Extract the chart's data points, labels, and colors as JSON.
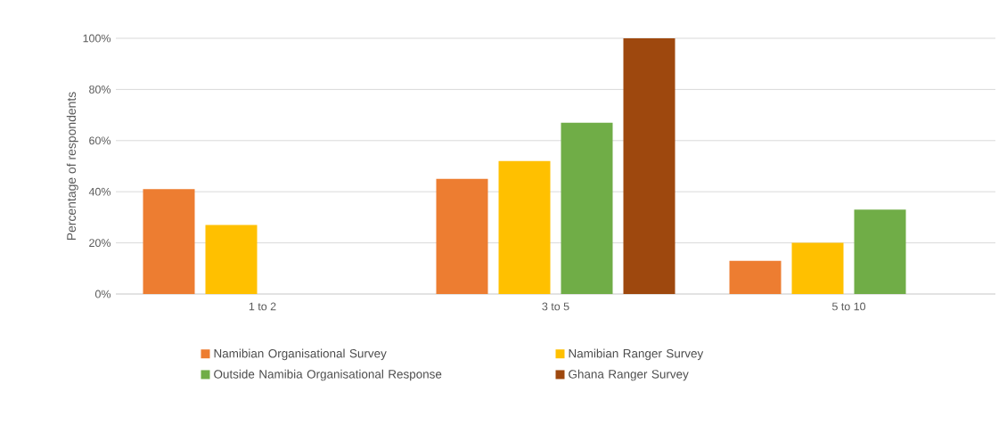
{
  "chart_data": {
    "type": "bar",
    "ylabel": "Percentage of respondents",
    "categories": [
      "1 to 2",
      "3 to 5",
      "5 to 10"
    ],
    "series": [
      {
        "name": "Namibian Organisational Survey",
        "color": "#ed7d31",
        "values": [
          41,
          45,
          13
        ]
      },
      {
        "name": "Namibian Ranger Survey",
        "color": "#ffc000",
        "values": [
          27,
          52,
          20
        ]
      },
      {
        "name": "Outside Namibia Organisational Response",
        "color": "#70ad47",
        "values": [
          0,
          67,
          33
        ]
      },
      {
        "name": "Ghana Ranger Survey",
        "color": "#9e480e",
        "values": [
          0,
          100,
          0
        ]
      }
    ],
    "ylim": [
      0,
      100
    ],
    "yticks": [
      {
        "value": 0,
        "label": "0%"
      },
      {
        "value": 20,
        "label": "20%"
      },
      {
        "value": 40,
        "label": "40%"
      },
      {
        "value": 60,
        "label": "60%"
      },
      {
        "value": 80,
        "label": "80%"
      },
      {
        "value": 100,
        "label": "100%"
      }
    ],
    "grid": "y",
    "legend": "bottom"
  }
}
